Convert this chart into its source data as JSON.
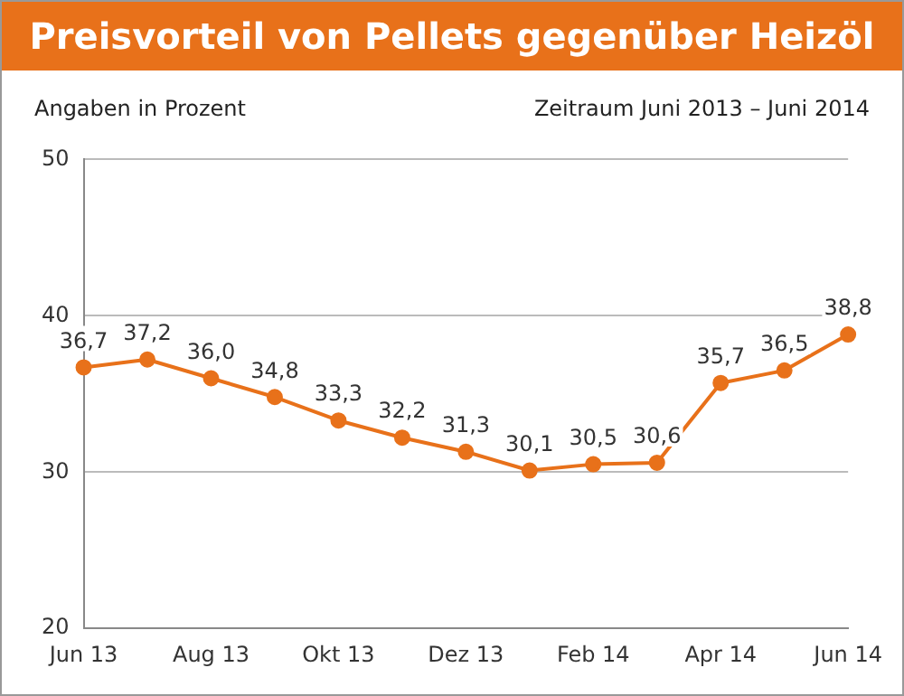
{
  "chart_data": {
    "type": "line",
    "title": "Preisvorteil von Pellets gegenüber Heizöl",
    "subtitle": "Zeitraum Juni 2013 – Juni 2014",
    "ylabel": "Angaben in Prozent",
    "categories": [
      "Jun 13",
      null,
      "Aug 13",
      null,
      "Okt 13",
      null,
      "Dez 13",
      null,
      "Feb 14",
      null,
      "Apr 14",
      null,
      "Jun 14"
    ],
    "series": [
      {
        "color": "#e8711a",
        "values": [
          36.7,
          37.2,
          36.0,
          34.8,
          33.3,
          32.2,
          31.3,
          30.1,
          30.5,
          30.6,
          35.7,
          36.5,
          38.8
        ],
        "value_labels": [
          "36,7",
          "37,2",
          "36,0",
          "34,8",
          "33,3",
          "32,2",
          "31,3",
          "30,1",
          "30,5",
          "30,6",
          "35,7",
          "36,5",
          "38,8"
        ]
      }
    ],
    "ylim": [
      20,
      50
    ],
    "yticks": [
      20,
      30,
      40,
      50
    ],
    "grid": "y",
    "marker": "circle",
    "line_style": "solid"
  }
}
